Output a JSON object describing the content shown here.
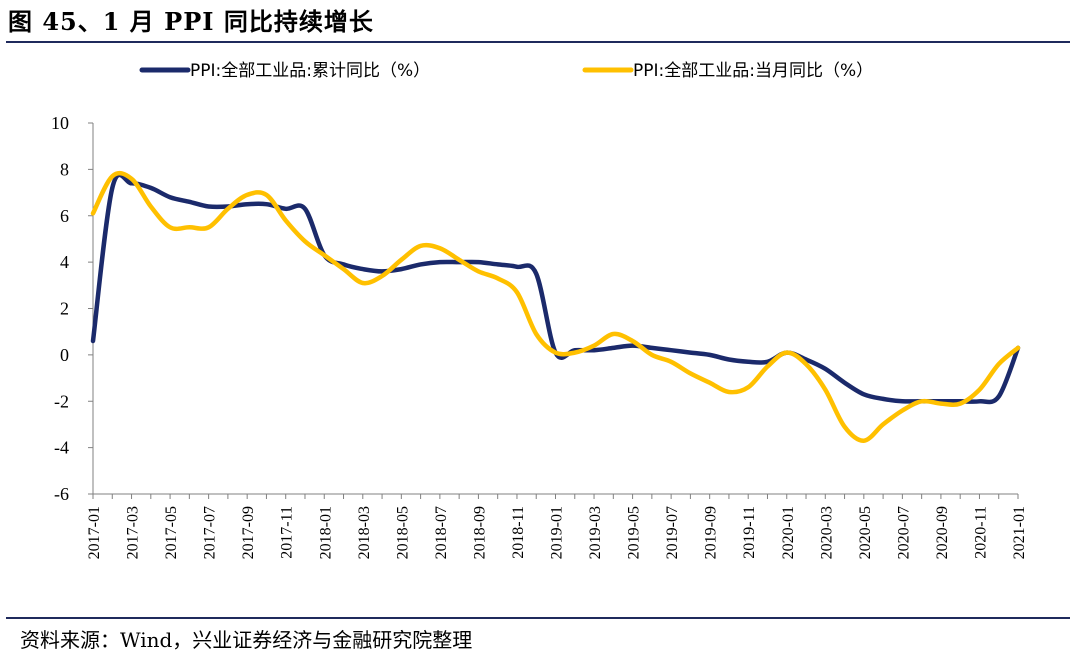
{
  "figure": {
    "title": "图 45、1 月 PPI 同比持续增长",
    "source": "资料来源：Wind，兴业证券经济与金融研究院整理"
  },
  "chart_data": {
    "type": "line",
    "x": [
      "2017-01",
      "2017-02",
      "2017-03",
      "2017-04",
      "2017-05",
      "2017-06",
      "2017-07",
      "2017-08",
      "2017-09",
      "2017-10",
      "2017-11",
      "2017-12",
      "2018-01",
      "2018-02",
      "2018-03",
      "2018-04",
      "2018-05",
      "2018-06",
      "2018-07",
      "2018-08",
      "2018-09",
      "2018-10",
      "2018-11",
      "2018-12",
      "2019-01",
      "2019-02",
      "2019-03",
      "2019-04",
      "2019-05",
      "2019-06",
      "2019-07",
      "2019-08",
      "2019-09",
      "2019-10",
      "2019-11",
      "2019-12",
      "2020-01",
      "2020-02",
      "2020-03",
      "2020-04",
      "2020-05",
      "2020-06",
      "2020-07",
      "2020-08",
      "2020-09",
      "2020-10",
      "2020-11",
      "2020-12",
      "2021-01"
    ],
    "tick_labels": [
      "2017-01",
      "2017-03",
      "2017-05",
      "2017-07",
      "2017-09",
      "2017-11",
      "2018-01",
      "2018-03",
      "2018-05",
      "2018-07",
      "2018-09",
      "2018-11",
      "2019-01",
      "2019-03",
      "2019-05",
      "2019-07",
      "2019-09",
      "2019-11",
      "2020-01",
      "2020-03",
      "2020-05",
      "2020-07",
      "2020-09",
      "2020-11",
      "2021-01"
    ],
    "series": [
      {
        "name": "PPI:全部工业品:累计同比（%）",
        "color": "#1b2a6b",
        "values": [
          0.6,
          7.2,
          7.4,
          7.2,
          6.8,
          6.6,
          6.4,
          6.4,
          6.5,
          6.5,
          6.3,
          6.3,
          4.3,
          3.9,
          3.7,
          3.6,
          3.7,
          3.9,
          4.0,
          4.0,
          4.0,
          3.9,
          3.8,
          3.5,
          0.1,
          0.2,
          0.2,
          0.3,
          0.4,
          0.3,
          0.2,
          0.1,
          0.0,
          -0.2,
          -0.3,
          -0.3,
          0.1,
          -0.2,
          -0.6,
          -1.2,
          -1.7,
          -1.9,
          -2.0,
          -2.0,
          -2.0,
          -2.0,
          -2.0,
          -1.8,
          0.3
        ]
      },
      {
        "name": "PPI:全部工业品:当月同比（%）",
        "color": "#ffc000",
        "values": [
          6.1,
          7.7,
          7.6,
          6.4,
          5.5,
          5.5,
          5.5,
          6.3,
          6.9,
          6.9,
          5.8,
          4.9,
          4.3,
          3.7,
          3.1,
          3.4,
          4.1,
          4.7,
          4.6,
          4.1,
          3.6,
          3.3,
          2.7,
          0.9,
          0.1,
          0.1,
          0.4,
          0.9,
          0.6,
          0.0,
          -0.3,
          -0.8,
          -1.2,
          -1.6,
          -1.4,
          -0.5,
          0.1,
          -0.4,
          -1.5,
          -3.1,
          -3.7,
          -3.0,
          -2.4,
          -2.0,
          -2.1,
          -2.1,
          -1.5,
          -0.4,
          0.3
        ]
      }
    ],
    "ylim": [
      -6,
      10
    ],
    "yticks": [
      -6,
      -4,
      -2,
      0,
      2,
      4,
      6,
      8,
      10
    ],
    "grid": false,
    "legend_position": "top"
  }
}
